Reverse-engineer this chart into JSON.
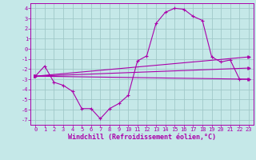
{
  "xlabel": "Windchill (Refroidissement éolien,°C)",
  "background_color": "#c5e8e8",
  "grid_color": "#a0c8c8",
  "line_color": "#aa00aa",
  "spine_color": "#aa00aa",
  "xlim": [
    -0.5,
    23.5
  ],
  "ylim": [
    -7.5,
    4.5
  ],
  "xticks": [
    0,
    1,
    2,
    3,
    4,
    5,
    6,
    7,
    8,
    9,
    10,
    11,
    12,
    13,
    14,
    15,
    16,
    17,
    18,
    19,
    20,
    21,
    22,
    23
  ],
  "yticks": [
    -7,
    -6,
    -5,
    -4,
    -3,
    -2,
    -1,
    0,
    1,
    2,
    3,
    4
  ],
  "line1_x": [
    0,
    1,
    2,
    3,
    4,
    5,
    6,
    7,
    8,
    9,
    10,
    11,
    12,
    13,
    14,
    15,
    16,
    17,
    18,
    19,
    20,
    21,
    22,
    23
  ],
  "line1_y": [
    -2.7,
    -1.7,
    -3.3,
    -3.6,
    -4.2,
    -5.9,
    -5.9,
    -6.9,
    -5.9,
    -5.4,
    -4.6,
    -1.2,
    -0.7,
    2.5,
    3.6,
    4.0,
    3.9,
    3.2,
    2.8,
    -0.8,
    -1.3,
    -1.1,
    -3.0,
    -3.0
  ],
  "line2_x": [
    0,
    23
  ],
  "line2_y": [
    -2.7,
    -3.0
  ],
  "line3_x": [
    0,
    23
  ],
  "line3_y": [
    -2.7,
    -0.8
  ],
  "line4_x": [
    0,
    23
  ],
  "line4_y": [
    -2.7,
    -1.9
  ],
  "tick_fontsize": 5.0,
  "xlabel_fontsize": 6.0
}
